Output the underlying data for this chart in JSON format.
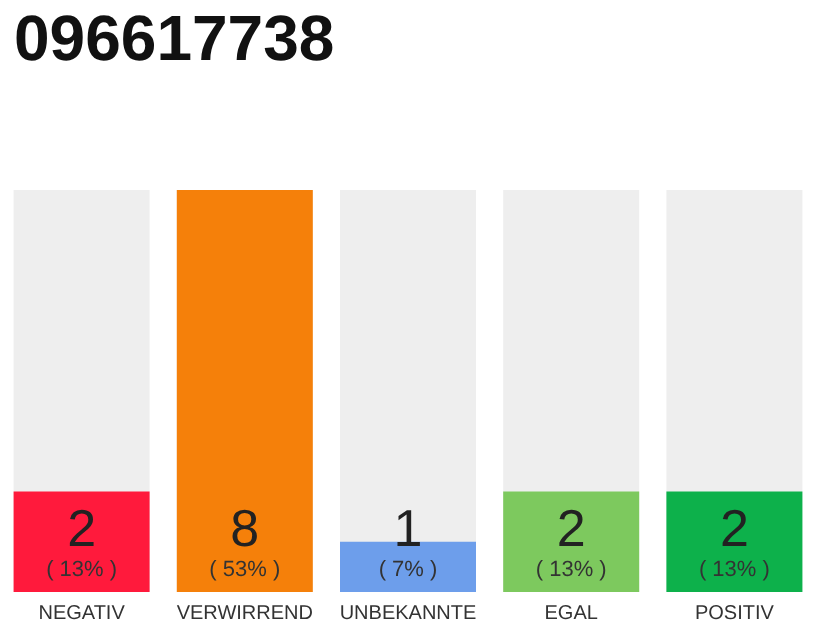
{
  "chart_data": {
    "type": "bar",
    "title": "096617738",
    "categories": [
      "NEGATIV",
      "VERWIRREND",
      "UNBEKANNTE",
      "EGAL",
      "POSITIV"
    ],
    "values": [
      2,
      8,
      1,
      2,
      2
    ],
    "colors": [
      "#ff1a3c",
      "#f5800a",
      "#6d9eeb",
      "#7dc95e",
      "#0db14b"
    ],
    "value_labels": [
      "2\n( 13% )",
      "8\n( 53% )",
      "1\n( 7% )",
      "2\n( 13% )",
      "2\n( 13% )"
    ]
  }
}
